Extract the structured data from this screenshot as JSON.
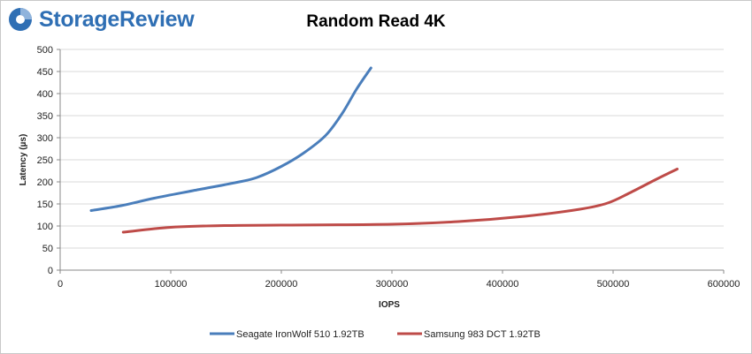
{
  "brand": {
    "name": "StorageReview",
    "logo_icon": "storagereview-disc-icon",
    "color": "#2f6fb4"
  },
  "chart_data": {
    "type": "line",
    "title": "Random Read 4K",
    "xlabel": "IOPS",
    "ylabel": "Latency (µs)",
    "xlim": [
      0,
      600000
    ],
    "ylim": [
      0,
      500
    ],
    "xticks": [
      0,
      100000,
      200000,
      300000,
      400000,
      500000,
      600000
    ],
    "yticks": [
      0,
      50,
      100,
      150,
      200,
      250,
      300,
      350,
      400,
      450,
      500
    ],
    "grid": true,
    "legend_position": "bottom",
    "series": [
      {
        "name": "Seagate IronWolf 510 1.92TB",
        "color": "#4a7ebb",
        "points": [
          [
            28000,
            135
          ],
          [
            55000,
            146
          ],
          [
            85000,
            163
          ],
          [
            120000,
            180
          ],
          [
            160000,
            199
          ],
          [
            178000,
            210
          ],
          [
            200000,
            235
          ],
          [
            220000,
            265
          ],
          [
            240000,
            305
          ],
          [
            255000,
            355
          ],
          [
            268000,
            410
          ],
          [
            281000,
            458
          ]
        ]
      },
      {
        "name": "Samsung 983 DCT 1.92TB",
        "color": "#be4b48",
        "points": [
          [
            57000,
            86
          ],
          [
            100000,
            97
          ],
          [
            150000,
            101
          ],
          [
            200000,
            102
          ],
          [
            300000,
            104
          ],
          [
            360000,
            110
          ],
          [
            420000,
            122
          ],
          [
            470000,
            138
          ],
          [
            495000,
            152
          ],
          [
            515000,
            175
          ],
          [
            540000,
            207
          ],
          [
            558000,
            229
          ]
        ]
      }
    ]
  }
}
